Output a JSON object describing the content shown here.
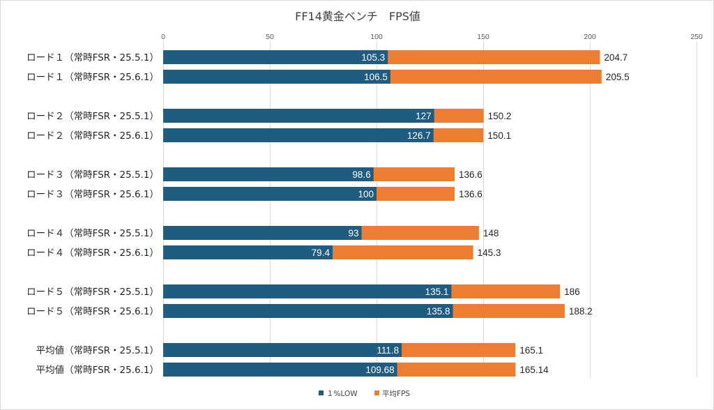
{
  "chart_data": {
    "type": "bar",
    "orientation": "horizontal",
    "stacking": "overlay",
    "title": "FF14黄金ベンチ　FPS値",
    "categories": [
      "ロード１（常時FSR・25.5.1）",
      "ロード１（常時FSR・25.6.1）",
      "ロード２（常時FSR・25.5.1）",
      "ロード２（常時FSR・25.6.1）",
      "ロード３（常時FSR・25.5.1）",
      "ロード３（常時FSR・25.6.1）",
      "ロード４（常時FSR・25.5.1）",
      "ロード４（常時FSR・25.6.1）",
      "ロード５（常時FSR・25.5.1）",
      "ロード５（常時FSR・25.6.1）",
      "平均値（常時FSR・25.5.1）",
      "平均値（常時FSR・25.6.1）"
    ],
    "groups": [
      [
        0,
        1
      ],
      [
        2,
        3
      ],
      [
        4,
        5
      ],
      [
        6,
        7
      ],
      [
        8,
        9
      ],
      [
        10,
        11
      ]
    ],
    "series": [
      {
        "name": "１%LOW",
        "color": "#1f5c80",
        "values": [
          105.3,
          106.5,
          127,
          126.7,
          98.6,
          100,
          93,
          79.4,
          135.1,
          135.8,
          111.8,
          109.68
        ],
        "labels": [
          "105.3",
          "106.5",
          "127",
          "126.7",
          "98.6",
          "100",
          "93",
          "79.4",
          "135.1",
          "135.8",
          "111.8",
          "109.68"
        ]
      },
      {
        "name": "平均FPS",
        "color": "#ed7d31",
        "values": [
          204.7,
          205.5,
          150.2,
          150.1,
          136.6,
          136.6,
          148,
          145.3,
          186,
          188.2,
          165.1,
          165.14
        ],
        "labels": [
          "204.7",
          "205.5",
          "150.2",
          "150.1",
          "136.6",
          "136.6",
          "148",
          "145.3",
          "186",
          "188.2",
          "165.1",
          "165.14"
        ]
      }
    ],
    "xlim": [
      0,
      250
    ],
    "xticks": [
      0,
      50,
      100,
      150,
      200,
      250
    ],
    "xtick_labels": [
      "0",
      "50",
      "100",
      "150",
      "200",
      "250"
    ],
    "axis_position": "top",
    "grid": true,
    "legend": "bottom-center"
  }
}
